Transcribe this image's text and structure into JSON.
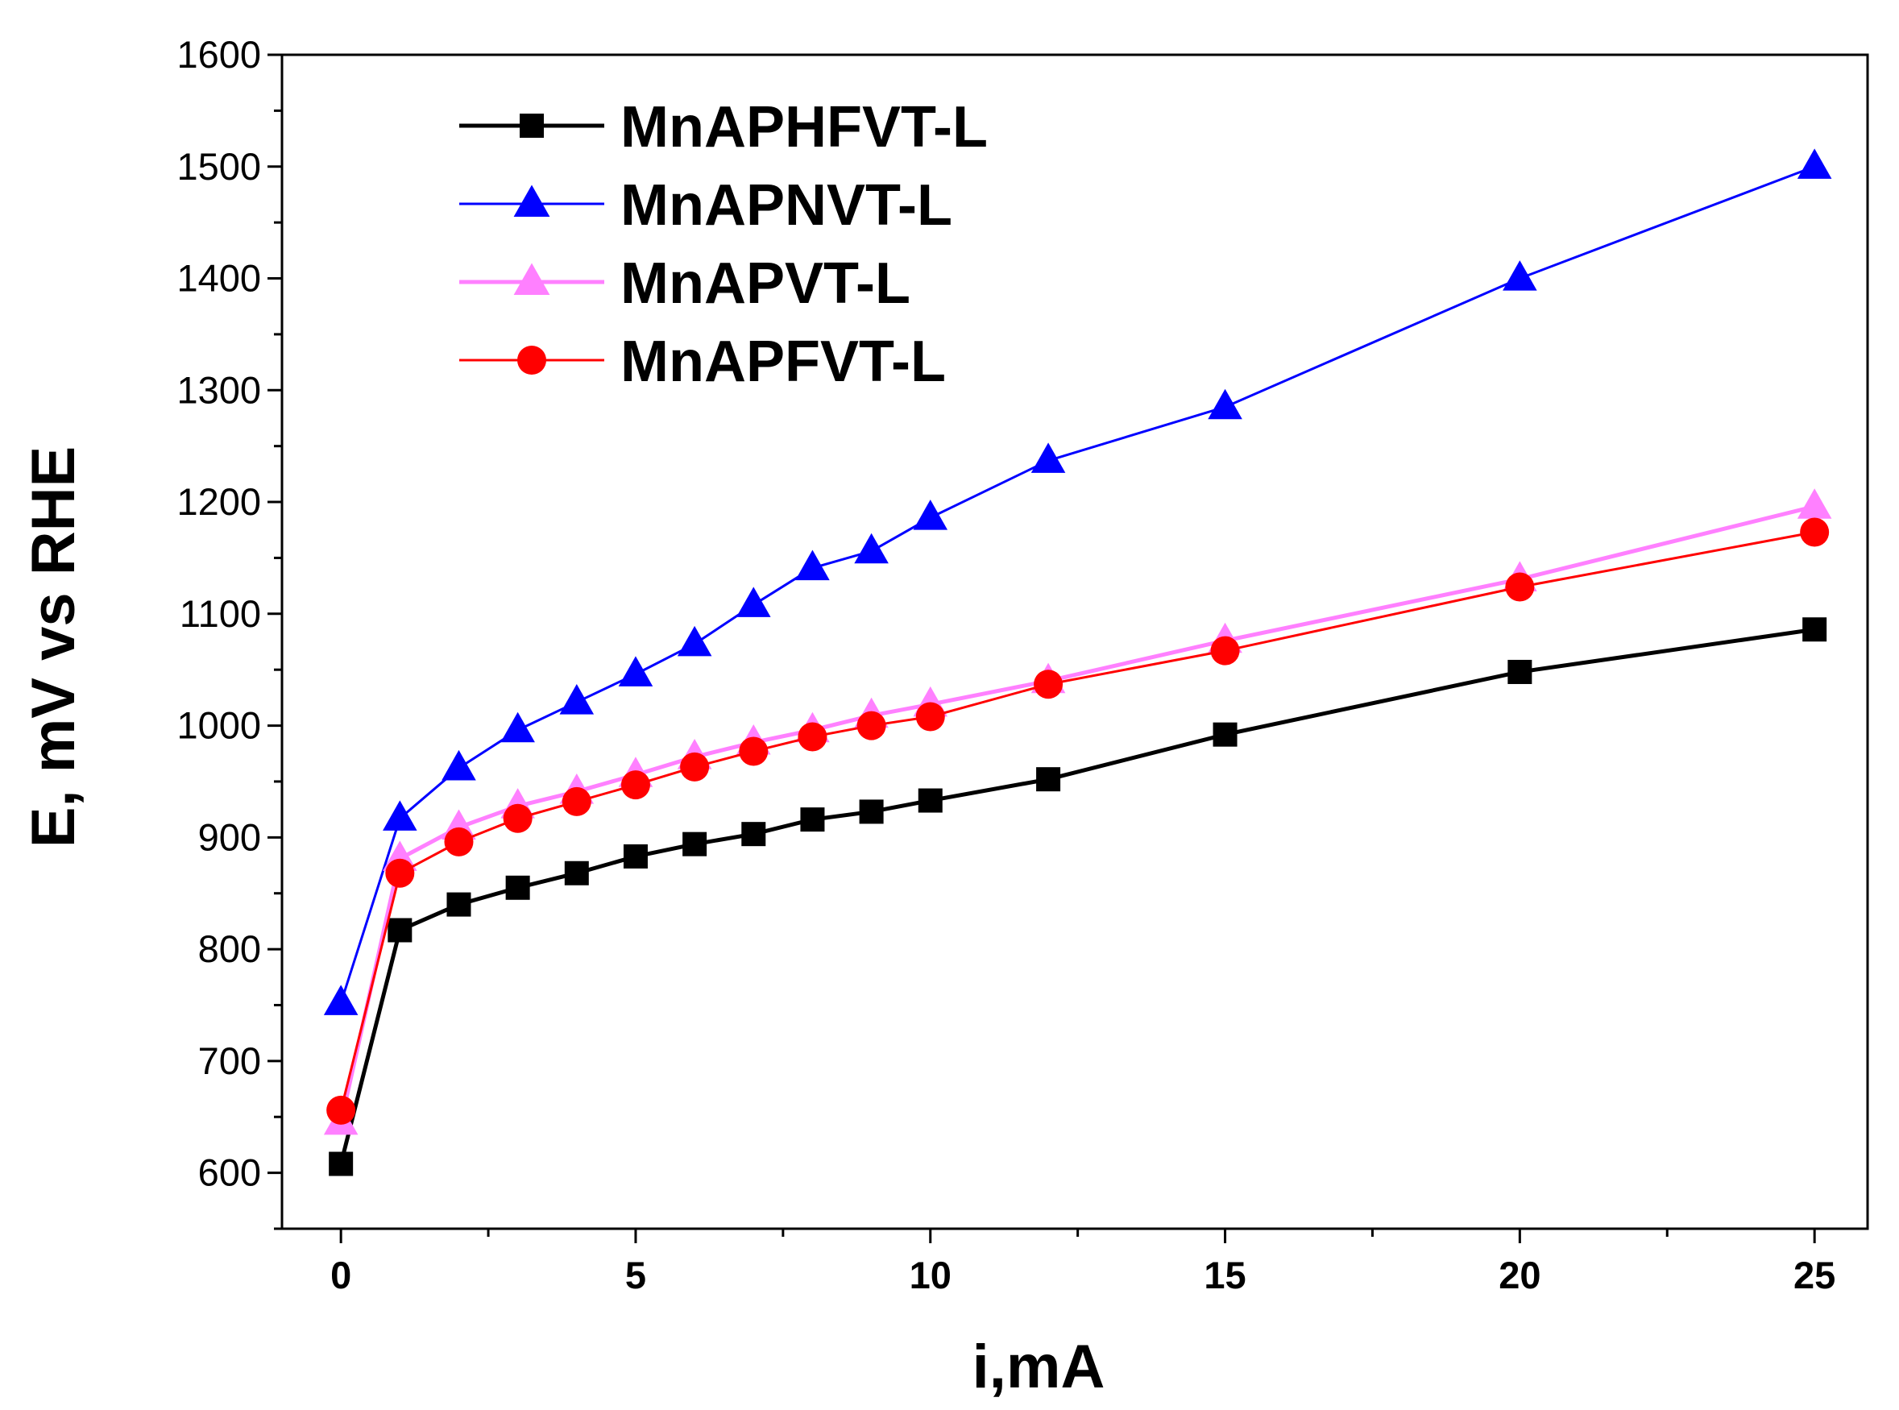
{
  "chart_data": {
    "type": "line",
    "title": "",
    "xlabel": "i,mA",
    "ylabel": "E, mV vs RHE",
    "xlim": [
      -1,
      25.9
    ],
    "ylim": [
      550,
      1600
    ],
    "xticks": [
      0,
      5,
      10,
      15,
      20,
      25
    ],
    "yticks": [
      600,
      700,
      800,
      900,
      1000,
      1100,
      1200,
      1300,
      1400,
      1500,
      1600
    ],
    "legend_position": "top-left",
    "grid": false,
    "series": [
      {
        "name": "MnAPHFVT-L",
        "color": "#000000",
        "marker": "square",
        "x": [
          0,
          1,
          2,
          3,
          4,
          5,
          6,
          7,
          8,
          9,
          10,
          12,
          15,
          20,
          25
        ],
        "y": [
          608,
          817,
          840,
          855,
          868,
          883,
          894,
          903,
          916,
          923,
          933,
          952,
          992,
          1048,
          1086
        ]
      },
      {
        "name": "MnAPNVT-L",
        "color": "#0000ff",
        "marker": "triangle",
        "x": [
          0,
          1,
          2,
          3,
          4,
          5,
          6,
          7,
          8,
          9,
          10,
          12,
          15,
          20,
          25
        ],
        "y": [
          752,
          917,
          962,
          996,
          1021,
          1046,
          1073,
          1108,
          1141,
          1156,
          1186,
          1237,
          1285,
          1400,
          1500
        ]
      },
      {
        "name": "MnAPVT-L",
        "color": "#ff80ff",
        "marker": "triangle",
        "x": [
          0,
          1,
          2,
          3,
          4,
          5,
          6,
          7,
          8,
          9,
          10,
          12,
          15,
          20,
          25
        ],
        "y": [
          645,
          881,
          909,
          928,
          941,
          956,
          972,
          985,
          996,
          1009,
          1019,
          1040,
          1076,
          1131,
          1196
        ]
      },
      {
        "name": "MnAPFVT-L",
        "color": "#ff0000",
        "marker": "circle",
        "x": [
          0,
          1,
          2,
          3,
          4,
          5,
          6,
          7,
          8,
          9,
          10,
          12,
          15,
          20,
          25
        ],
        "y": [
          656,
          868,
          896,
          917,
          932,
          947,
          963,
          977,
          990,
          1000,
          1008,
          1037,
          1067,
          1124,
          1173
        ]
      }
    ]
  }
}
